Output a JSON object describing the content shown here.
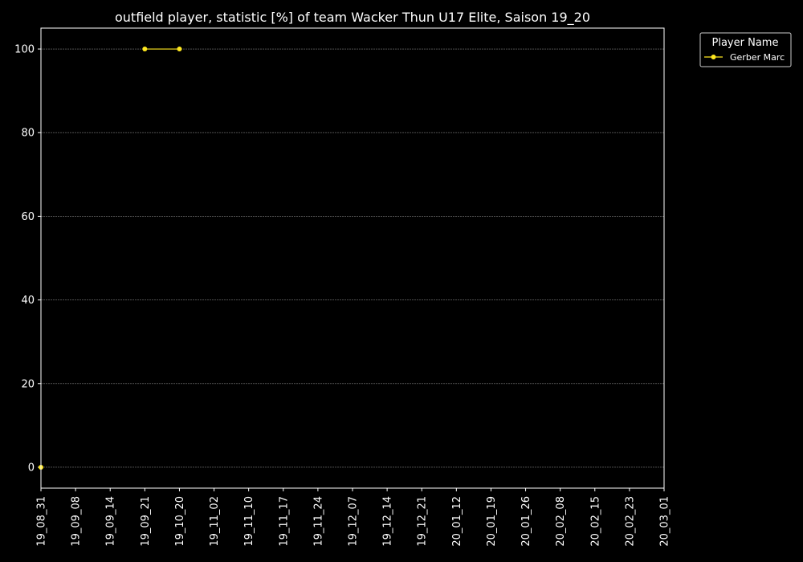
{
  "chart_data": {
    "type": "line",
    "title": "outfield player, statistic [%] of team Wacker Thun U17 Elite, Saison 19_20",
    "xlabel": "",
    "ylabel": "",
    "categories": [
      "19_08_31",
      "19_09_08",
      "19_09_14",
      "19_09_21",
      "19_10_20",
      "19_11_02",
      "19_11_10",
      "19_11_17",
      "19_11_24",
      "19_12_07",
      "19_12_14",
      "19_12_21",
      "20_01_12",
      "20_01_19",
      "20_01_26",
      "20_02_08",
      "20_02_15",
      "20_02_23",
      "20_03_01"
    ],
    "yticks": [
      0,
      20,
      40,
      60,
      80,
      100
    ],
    "ylim": [
      -5,
      105
    ],
    "grid": true,
    "legend": {
      "title": "Player Name",
      "placement": "outside-top-right"
    },
    "series": [
      {
        "name": "Gerber Marc",
        "color": "#ffe81f",
        "points": [
          {
            "x": "19_08_31",
            "y": 0
          },
          {
            "x": "19_09_21",
            "y": 100
          },
          {
            "x": "19_10_20",
            "y": 100
          }
        ]
      }
    ]
  },
  "colors": {
    "background": "#000000",
    "foreground": "#ffffff",
    "grid": "#808080"
  }
}
